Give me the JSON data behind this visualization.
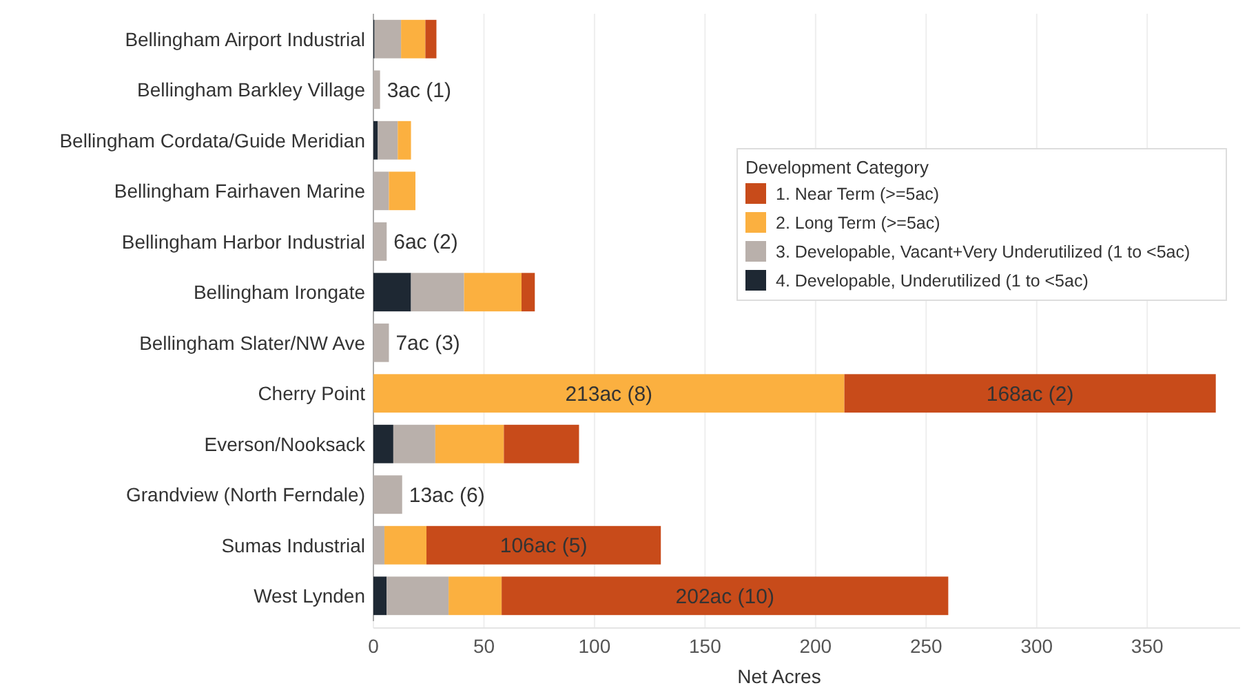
{
  "chart_data": {
    "type": "bar",
    "orientation": "horizontal",
    "stacked": true,
    "xlabel": "Net Acres",
    "legend_title": "Development Category",
    "legend": "top right",
    "grid": "x",
    "categories": [
      "Bellingham Airport Industrial",
      "Bellingham Barkley Village",
      "Bellingham Cordata/Guide Meridian",
      "Bellingham Fairhaven Marine",
      "Bellingham Harbor Industrial",
      "Bellingham Irongate",
      "Bellingham Slater/NW Ave",
      "Cherry Point",
      "Everson/Nooksack",
      "Grandview (North Ferndale)",
      "Sumas Industrial",
      "West Lynden"
    ],
    "xlim": [
      0,
      392
    ],
    "xticks": [
      0,
      50,
      100,
      150,
      200,
      250,
      300,
      350
    ],
    "series": [
      {
        "name": "4. Developable, Underutilized (1 to <5ac)",
        "color": "#1e2833",
        "values": [
          0.5,
          null,
          2,
          null,
          null,
          17,
          null,
          null,
          9,
          null,
          null,
          6
        ]
      },
      {
        "name": "3. Developable, Vacant+Very Underutilized (1 to <5ac)",
        "color": "#b9b0ab",
        "values": [
          12,
          3,
          9,
          7,
          6,
          24,
          7,
          null,
          19,
          13,
          5,
          28
        ],
        "value_labels": [
          null,
          "3ac (1)",
          null,
          null,
          "6ac (2)",
          null,
          "7ac (3)",
          null,
          null,
          "13ac (6)",
          null,
          null
        ]
      },
      {
        "name": "2. Long Term (>=5ac)",
        "color": "#fbb040",
        "values": [
          11,
          null,
          6,
          12,
          null,
          26,
          null,
          213,
          31,
          null,
          19,
          24
        ],
        "value_labels": [
          null,
          null,
          null,
          null,
          null,
          null,
          null,
          "213ac (8)",
          null,
          null,
          null,
          null
        ]
      },
      {
        "name": "1. Near Term (>=5ac)",
        "color": "#c84b1a",
        "values": [
          5,
          null,
          null,
          null,
          null,
          6,
          null,
          168,
          34,
          null,
          106,
          202
        ],
        "value_labels": [
          null,
          null,
          null,
          null,
          null,
          null,
          null,
          "168ac (2)",
          null,
          null,
          "106ac (5)",
          "202ac (10)"
        ]
      }
    ]
  }
}
